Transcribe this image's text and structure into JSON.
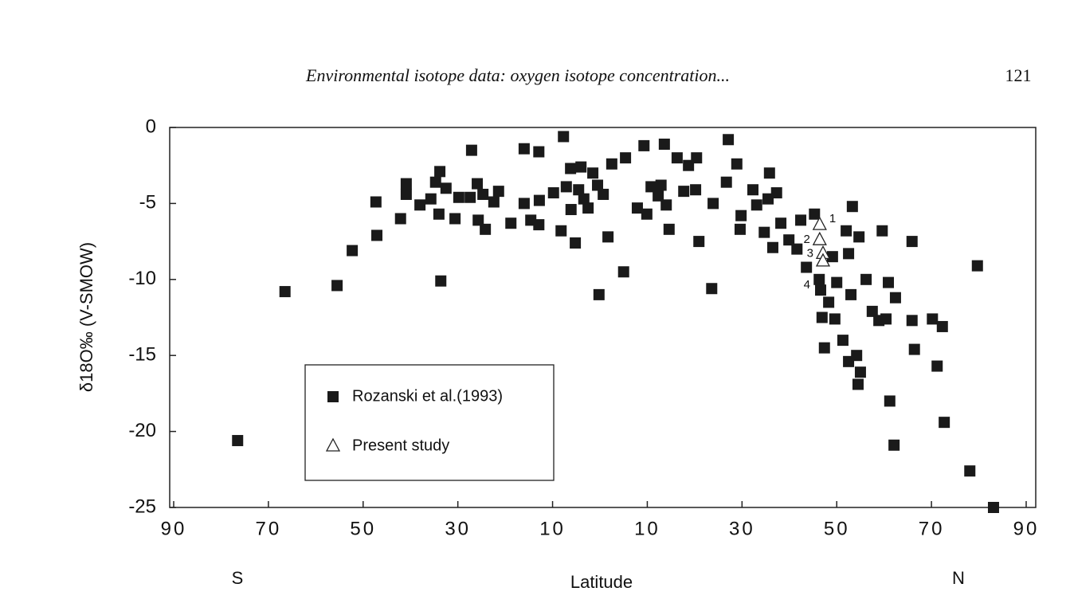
{
  "header": {
    "title": "Environmental isotope data: oxygen isotope concentration...",
    "page": "121"
  },
  "chart_data": {
    "type": "scatter",
    "xlabel": "Latitude",
    "ylabel": "δ18O‰ (V-SMOW)",
    "annotations": [
      "S",
      "N"
    ],
    "xlim": [
      -90,
      90
    ],
    "ylim": [
      -25,
      0
    ],
    "xticks": [
      {
        "value": -90,
        "label": "90"
      },
      {
        "value": -70,
        "label": "70"
      },
      {
        "value": -50,
        "label": "50"
      },
      {
        "value": -30,
        "label": "30"
      },
      {
        "value": -10,
        "label": "10"
      },
      10,
      30,
      50,
      70,
      90
    ],
    "yticks": [
      0,
      -5,
      -10,
      -15,
      -20,
      -25
    ],
    "legend": "lower left",
    "series": [
      {
        "name": "Rozanski et al.(1993)",
        "marker": "square",
        "color": "#1a1a1a",
        "x": [
          -76.5,
          -66.5,
          -55.5,
          -52.3,
          -47.1,
          -47.3,
          -42.1,
          -40.9,
          -40.9,
          -38.0,
          -35.7,
          -34.7,
          -34.0,
          -33.8,
          -33.6,
          -32.5,
          -30.6,
          -29.8,
          -27.4,
          -27.1,
          -25.9,
          -25.7,
          -24.2,
          -24.7,
          -22.4,
          -21.4,
          -18.8,
          -16.0,
          -16.0,
          -14.6,
          -12.9,
          -12.8,
          -12.9,
          -9.8,
          -8.2,
          -7.7,
          -7.1,
          -6.2,
          -6.1,
          -5.2,
          -4.5,
          -4.0,
          -3.4,
          -2.5,
          -1.5,
          -0.5,
          -0.2,
          0.7,
          1.7,
          2.5,
          5.0,
          5.4,
          7.9,
          9.3,
          9.9,
          10.8,
          12.3,
          12.9,
          13.6,
          14.0,
          14.6,
          16.3,
          17.7,
          18.7,
          20.2,
          20.4,
          20.9,
          23.6,
          23.9,
          26.7,
          27.1,
          28.9,
          29.6,
          29.8,
          32.3,
          33.1,
          34.7,
          35.5,
          35.8,
          36.5,
          37.3,
          38.2,
          39.9,
          41.6,
          42.4,
          43.6,
          45.3,
          46.3,
          46.6,
          46.9,
          47.4,
          48.3,
          49.1,
          49.6,
          50.0,
          51.3,
          52.0,
          52.5,
          53.0,
          52.5,
          53.3,
          54.2,
          54.5,
          55.0,
          54.7,
          56.2,
          57.5,
          58.9,
          59.6,
          60.4,
          60.9,
          61.2,
          62.1,
          62.4,
          65.9,
          65.9,
          66.4,
          70.2,
          71.2,
          72.3,
          72.7,
          78.1,
          79.7,
          83.1
        ],
        "values": [
          -20.6,
          -10.8,
          -10.4,
          -8.1,
          -7.1,
          -4.9,
          -6.0,
          -4.4,
          -3.7,
          -5.1,
          -4.7,
          -3.6,
          -5.7,
          -2.9,
          -10.1,
          -4.0,
          -6.0,
          -4.6,
          -4.6,
          -1.5,
          -3.7,
          -6.1,
          -6.7,
          -4.4,
          -4.9,
          -4.2,
          -6.3,
          -1.4,
          -5.0,
          -6.1,
          -1.6,
          -4.8,
          -6.4,
          -4.3,
          -6.8,
          -0.6,
          -3.9,
          -2.7,
          -5.4,
          -7.6,
          -4.1,
          -2.6,
          -4.7,
          -5.3,
          -3.0,
          -3.8,
          -11.0,
          -4.4,
          -7.2,
          -2.4,
          -9.5,
          -2.0,
          -5.3,
          -1.2,
          -5.7,
          -3.9,
          -4.5,
          -3.8,
          -1.1,
          -5.1,
          -6.7,
          -2.0,
          -4.2,
          -2.5,
          -4.1,
          -2.0,
          -7.5,
          -10.6,
          -5.0,
          -3.6,
          -0.8,
          -2.4,
          -6.7,
          -5.8,
          -4.1,
          -5.1,
          -6.9,
          -4.7,
          -3.0,
          -7.9,
          -4.3,
          -6.3,
          -7.4,
          -8.0,
          -6.1,
          -9.2,
          -5.7,
          -10.0,
          -10.7,
          -12.5,
          -14.5,
          -11.5,
          -8.5,
          -12.6,
          -10.2,
          -14.0,
          -6.8,
          -8.3,
          -11.0,
          -15.4,
          -5.2,
          -15.0,
          -16.9,
          -16.1,
          -7.2,
          -10.0,
          -12.1,
          -12.7,
          -6.8,
          -12.6,
          -10.2,
          -18.0,
          -20.9,
          -11.2,
          -12.7,
          -7.5,
          -14.6,
          -12.6,
          -15.7,
          -13.1,
          -19.4,
          -22.6,
          -9.1,
          -25.0
        ]
      },
      {
        "name": "Present study",
        "marker": "triangle",
        "color": "#ffffff",
        "x": [
          46.4,
          46.4,
          47.1,
          47.1
        ],
        "values": [
          -6.4,
          -7.4,
          -8.3,
          -8.8
        ],
        "point_labels": [
          "1",
          "2",
          "3",
          "4"
        ]
      }
    ]
  }
}
